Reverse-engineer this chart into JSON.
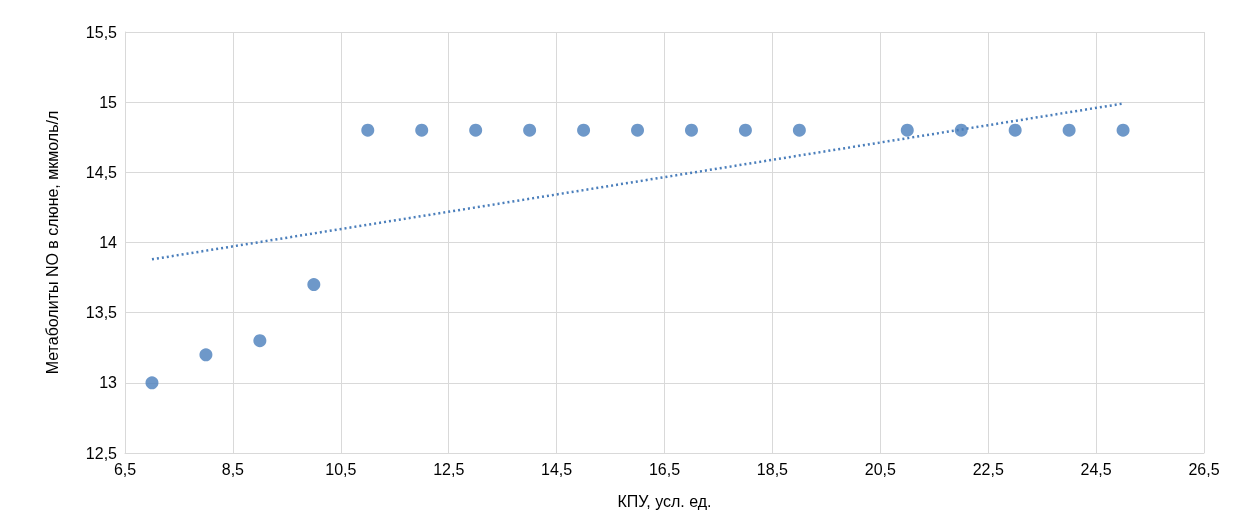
{
  "chart_data": {
    "type": "scatter",
    "xlabel": "КПУ, усл. ед.",
    "ylabel": "Метаболиты NO в слюне, мкмоль/л",
    "marker": "circle",
    "grid": true,
    "xlim": [
      6.5,
      26.5
    ],
    "xticks": [
      {
        "value": 6.5,
        "label": "6,5"
      },
      {
        "value": 8.5,
        "label": "8,5"
      },
      {
        "value": 10.5,
        "label": "10,5"
      },
      {
        "value": 12.5,
        "label": "12,5"
      },
      {
        "value": 14.5,
        "label": "14,5"
      },
      {
        "value": 16.5,
        "label": "16,5"
      },
      {
        "value": 18.5,
        "label": "18,5"
      },
      {
        "value": 20.5,
        "label": "20,5"
      },
      {
        "value": 22.5,
        "label": "22,5"
      },
      {
        "value": 24.5,
        "label": "24,5"
      },
      {
        "value": 26.5,
        "label": "26,5"
      }
    ],
    "ylim": [
      12.5,
      15.5
    ],
    "yticks": [
      {
        "value": 12.5,
        "label": "12,5"
      },
      13,
      {
        "value": 13.5,
        "label": "13,5"
      },
      14,
      {
        "value": 14.5,
        "label": "14,5"
      },
      15,
      {
        "value": 15.5,
        "label": "15,5"
      }
    ],
    "series": [
      {
        "color": "#4a7ebb",
        "x": [
          7,
          8,
          9,
          10,
          11,
          12,
          13,
          14,
          15,
          16,
          17,
          18,
          19,
          21,
          22,
          23,
          24,
          25
        ],
        "values": [
          13,
          13.2,
          13.3,
          13.7,
          14.8,
          14.8,
          14.8,
          14.8,
          14.8,
          14.8,
          14.8,
          14.8,
          14.8,
          14.8,
          14.8,
          14.8,
          14.8,
          14.8
        ]
      },
      {
        "type": "line",
        "color": "#4a7ebb",
        "marker": "none",
        "line_style": "dotted",
        "x": [
          7,
          25
        ],
        "values": [
          13.88,
          14.99
        ]
      }
    ]
  }
}
